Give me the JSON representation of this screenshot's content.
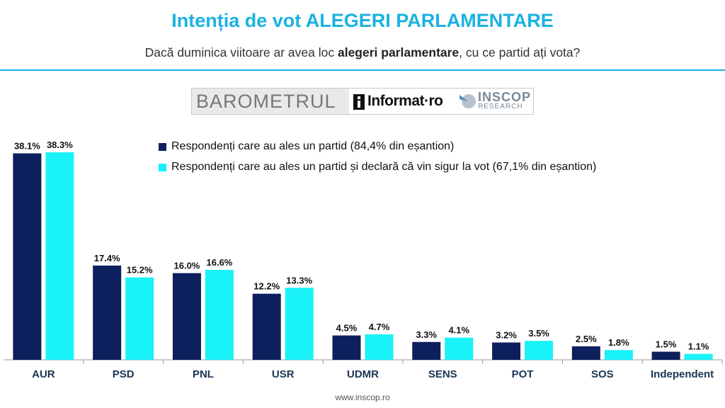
{
  "title": "Intenția de vot ALEGERI PARLAMENTARE",
  "subtitle": {
    "before": "Dacă duminica viitoare ar avea loc ",
    "bold": "alegeri parlamentare",
    "after": ", cu ce partid ați vota?"
  },
  "logos": {
    "barometrul": "BAROMETRUL",
    "informat": "Informat·ro",
    "inscop": "INSCOP",
    "research": "RESEARCH"
  },
  "footer": "www.inscop.ro",
  "colors": {
    "accent": "#1ab2e0",
    "series1": "#0d1f5c",
    "series2": "#19f2f8"
  },
  "chart_data": {
    "type": "bar",
    "categories": [
      "AUR",
      "PSD",
      "PNL",
      "USR",
      "UDMR",
      "SENS",
      "POT",
      "SOS",
      "Independent"
    ],
    "series": [
      {
        "name": "Respondenți care au ales un partid (84,4% din eșantion)",
        "color": "#0d1f5c",
        "values": [
          38.1,
          17.4,
          16.0,
          12.2,
          4.5,
          3.3,
          3.2,
          2.5,
          1.5
        ],
        "labels": [
          "38.1%",
          "17.4%",
          "16.0%",
          "12.2%",
          "4.5%",
          "3.3%",
          "3.2%",
          "2.5%",
          "1.5%"
        ]
      },
      {
        "name": "Respondenți care au ales un partid și declară că vin sigur la vot (67,1% din eșantion)",
        "color": "#19f2f8",
        "values": [
          38.3,
          15.2,
          16.6,
          13.3,
          4.7,
          4.1,
          3.5,
          1.8,
          1.1
        ],
        "labels": [
          "38.3%",
          "15.2%",
          "16.6%",
          "13.3%",
          "4.7%",
          "4.1%",
          "3.5%",
          "1.8%",
          "1.1%"
        ]
      }
    ],
    "legend_position": "top",
    "grid": false
  }
}
